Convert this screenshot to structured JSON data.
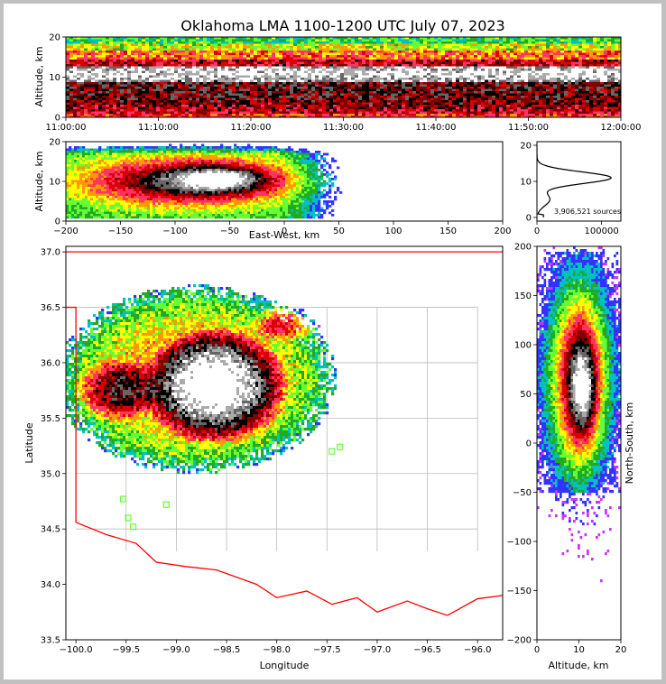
{
  "chart_data": {
    "type": "heatmap",
    "title": "Oklahoma LMA 1100-1200 UTC July 07, 2023",
    "panels": {
      "time_altitude": {
        "ylabel": "Altitude, km",
        "ylim": [
          0,
          20
        ],
        "yticks": [
          "0",
          "10",
          "20"
        ],
        "xticks": [
          "11:00:00",
          "11:10:00",
          "11:20:00",
          "11:30:00",
          "11:40:00",
          "11:50:00",
          "12:00:00"
        ]
      },
      "ew_altitude": {
        "xlabel": "East-West, km",
        "ylabel": "Altitude, km",
        "xlim": [
          -200,
          200
        ],
        "ylim": [
          0,
          20
        ],
        "xticks": [
          "−200",
          "−150",
          "−100",
          "−50",
          "0",
          "50",
          "100",
          "150",
          "200"
        ],
        "yticks": [
          "0",
          "10",
          "20"
        ]
      },
      "altitude_histogram": {
        "xticks": [
          "0",
          "100000"
        ],
        "yticks": [
          "0",
          "10",
          "20"
        ],
        "annotation": "3,906,521 sources"
      },
      "plan_view": {
        "xlabel": "Longitude",
        "ylabel": "Latitude",
        "xlim": [
          -100.1,
          -95.75
        ],
        "ylim": [
          33.5,
          37.05
        ],
        "xticks": [
          "−100.0",
          "−99.5",
          "−99.0",
          "−98.5",
          "−98.0",
          "−97.5",
          "−97.0",
          "−96.5",
          "−96.0"
        ],
        "yticks": [
          "33.5",
          "34.0",
          "34.5",
          "35.0",
          "35.5",
          "36.0",
          "36.5",
          "37.0"
        ]
      },
      "ns_altitude": {
        "xlabel": "Altitude, km",
        "ylabel": "North-South, km",
        "xlim": [
          0,
          20
        ],
        "ylim": [
          -200,
          200
        ],
        "xticks": [
          "0",
          "10",
          "20"
        ],
        "yticks": [
          "−200",
          "−150",
          "−100",
          "−50",
          "0",
          "50",
          "100",
          "150",
          "200"
        ]
      }
    },
    "colorscale": [
      "#cc33ff",
      "#3333ff",
      "#00c0c0",
      "#22aa22",
      "#66ff33",
      "#ffff00",
      "#ff9900",
      "#ff3366",
      "#dd0000",
      "#800000",
      "#000000",
      "#666666",
      "#aaaaaa",
      "#ffffff"
    ],
    "border_color": "#ff0000",
    "county_color": "#bbbbbb",
    "station_color": "#66ff33"
  }
}
